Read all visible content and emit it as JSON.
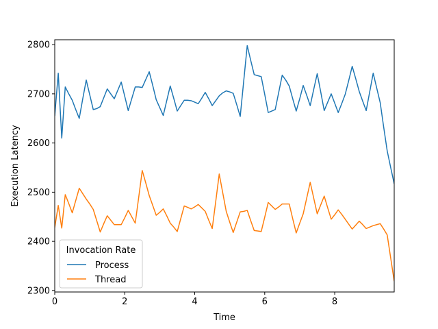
{
  "chart_data": {
    "type": "line",
    "title": "",
    "xlabel": "Time",
    "ylabel": "Execution Latency",
    "xlim": [
      0,
      9.7
    ],
    "ylim": [
      2297,
      2810
    ],
    "xticks": [
      0,
      2,
      4,
      6,
      8
    ],
    "yticks": [
      2300,
      2400,
      2500,
      2600,
      2700,
      2800
    ],
    "grid": false,
    "legend": {
      "title": "Invocation Rate",
      "placement": "lower-left"
    },
    "x": [
      0,
      0.1,
      0.2,
      0.3,
      0.4,
      0.5,
      0.6,
      0.7,
      0.8,
      0.9,
      1.0,
      1.1,
      1.2,
      1.3,
      1.4,
      1.5,
      1.6,
      1.7,
      1.8,
      1.9,
      2.0,
      2.1,
      2.2,
      2.3,
      2.4,
      2.5,
      2.6,
      2.7,
      2.8,
      2.9,
      3.0,
      3.1,
      3.2,
      3.3,
      3.4,
      3.5,
      3.6,
      3.7,
      3.8,
      3.9,
      4.0,
      4.1,
      4.2,
      4.3,
      4.4,
      4.5,
      4.6,
      4.7,
      4.8,
      4.9,
      5.0,
      5.1,
      5.2,
      5.3,
      5.4,
      5.5,
      5.6,
      5.7,
      5.8,
      5.9,
      6.0,
      6.1,
      6.2,
      6.3,
      6.4,
      6.5,
      6.6,
      6.7,
      6.8,
      6.9,
      7.0,
      7.1,
      7.2,
      7.3,
      7.4,
      7.5,
      7.6,
      7.7,
      7.8,
      7.9,
      8.0,
      8.1,
      8.2,
      8.3,
      8.4,
      8.5,
      8.6,
      8.7,
      8.8,
      8.9,
      9.0,
      9.1,
      9.2,
      9.3,
      9.4,
      9.5,
      9.6,
      9.7
    ],
    "series": [
      {
        "name": "Process",
        "color": "#1f77b4",
        "values": [
          2655,
          2742,
          2610,
          2714,
          2700,
          2687,
          2668,
          2650,
          2690,
          2728,
          2698,
          2668,
          2670,
          2674,
          2692,
          2710,
          2700,
          2690,
          2707,
          2724,
          2695,
          2666,
          2690,
          2714,
          2714,
          2713,
          2729,
          2745,
          2717,
          2688,
          2672,
          2656,
          2686,
          2716,
          2691,
          2665,
          2676,
          2687,
          2687,
          2686,
          2683,
          2680,
          2691,
          2703,
          2690,
          2676,
          2686,
          2696,
          2702,
          2706,
          2704,
          2701,
          2678,
          2654,
          2726,
          2798,
          2768,
          2739,
          2737,
          2735,
          2699,
          2662,
          2665,
          2668,
          2703,
          2738,
          2728,
          2716,
          2690,
          2665,
          2690,
          2717,
          2697,
          2676,
          2709,
          2741,
          2704,
          2666,
          2683,
          2700,
          2681,
          2662,
          2680,
          2699,
          2727,
          2756,
          2731,
          2705,
          2685,
          2666,
          2704,
          2742,
          2712,
          2682,
          2632,
          2584,
          2550,
          2517
        ]
      },
      {
        "name": "Thread",
        "color": "#ff7f0e",
        "values": [
          2428,
          2473,
          2427,
          2495,
          2477,
          2458,
          2483,
          2508,
          2497,
          2486,
          2476,
          2465,
          2442,
          2419,
          2436,
          2452,
          2443,
          2434,
          2434,
          2434,
          2448,
          2463,
          2450,
          2437,
          2490,
          2544,
          2519,
          2493,
          2473,
          2453,
          2459,
          2466,
          2452,
          2437,
          2429,
          2420,
          2446,
          2472,
          2469,
          2466,
          2470,
          2475,
          2468,
          2461,
          2443,
          2426,
          2481,
          2537,
          2499,
          2461,
          2439,
          2418,
          2439,
          2460,
          2461,
          2463,
          2442,
          2422,
          2421,
          2420,
          2449,
          2479,
          2472,
          2465,
          2470,
          2476,
          2476,
          2476,
          2446,
          2417,
          2437,
          2456,
          2488,
          2520,
          2488,
          2456,
          2474,
          2492,
          2468,
          2445,
          2454,
          2464,
          2455,
          2445,
          2435,
          2425,
          2433,
          2441,
          2434,
          2426,
          2429,
          2432,
          2434,
          2436,
          2425,
          2413,
          2366,
          2319
        ]
      }
    ]
  }
}
